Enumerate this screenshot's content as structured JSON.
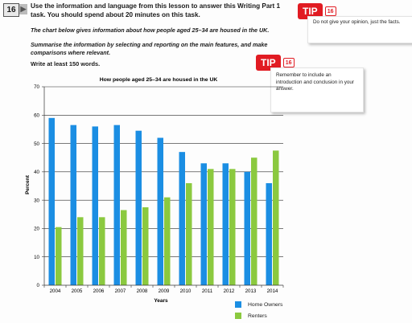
{
  "header": {
    "task_number": "16",
    "arrow": "▶",
    "title": "Use the information and language from this lesson to answer this Writing Part 1 task. You should spend about 20 minutes on this task.",
    "paragraph1": "The chart below gives information about how people aged 25–34 are housed in the UK.",
    "paragraph2": "Summarise the information by selecting and reporting on the main features, and make comparisons where relevant.",
    "write": "Write at least 150 words."
  },
  "tips": [
    {
      "label": "TIP",
      "number": "16",
      "text": "Do not give your opinion, just the facts."
    },
    {
      "label": "TIP",
      "number": "16",
      "text": "Remember to include an introduction and conclusion in your answer."
    }
  ],
  "colors": {
    "home_owners": "#1b8ee3",
    "renters": "#8bc93f",
    "tip": "#e11b22"
  },
  "chart_data": {
    "type": "bar",
    "title": "How people aged 25–34 are housed in the UK",
    "xlabel": "Years",
    "ylabel": "Percent",
    "ylim": [
      0,
      70
    ],
    "yticks": [
      0,
      10,
      20,
      30,
      40,
      50,
      60,
      70
    ],
    "grid": true,
    "legend_position": "bottom-right",
    "categories": [
      "2004",
      "2005",
      "2006",
      "2007",
      "2008",
      "2009",
      "2010",
      "2011",
      "2012",
      "2013",
      "2014"
    ],
    "series": [
      {
        "name": "Home Owners",
        "color": "#1b8ee3",
        "values": [
          59,
          56.5,
          56,
          56.5,
          54.5,
          52,
          47,
          43,
          43,
          40,
          36
        ]
      },
      {
        "name": "Renters",
        "color": "#8bc93f",
        "values": [
          20.5,
          24,
          24,
          26.5,
          27.5,
          31,
          36,
          41,
          41,
          45,
          47.5
        ]
      }
    ]
  }
}
